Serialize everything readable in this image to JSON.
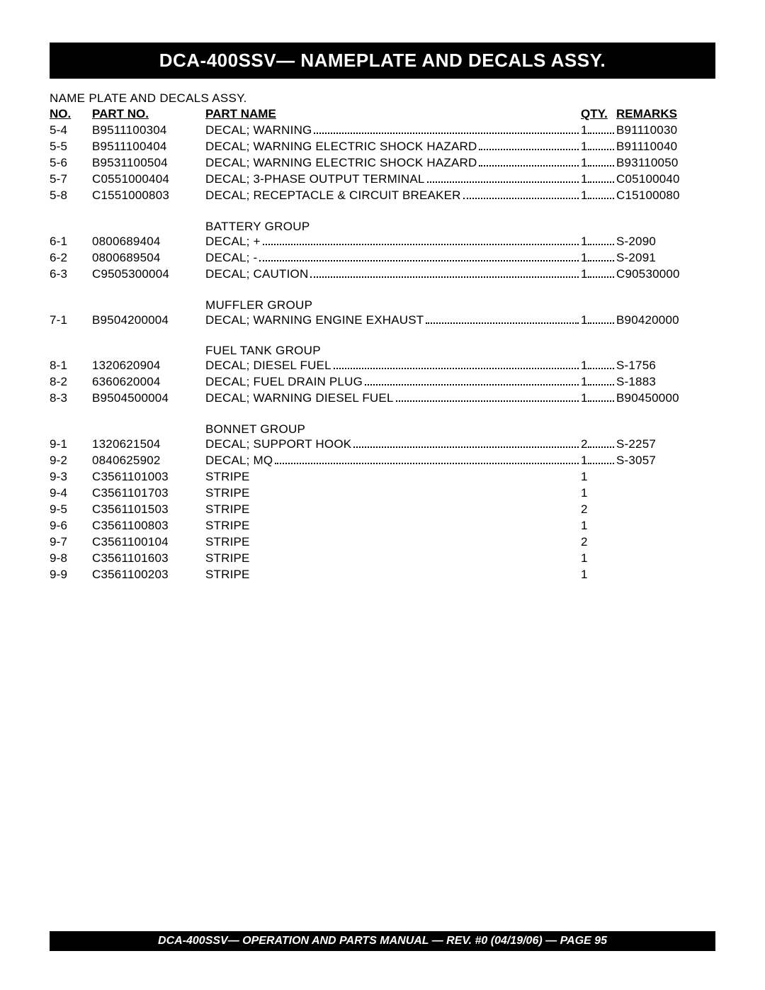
{
  "title": "DCA-400SSV— NAMEPLATE AND DECALS ASSY.",
  "subtitle": "NAME PLATE AND DECALS ASSY.",
  "headers": {
    "no": "NO.",
    "partno": "PART NO.",
    "partname": "PART NAME",
    "qty": "QTY.",
    "remarks": "REMARKS"
  },
  "sections": [
    {
      "group": null,
      "rows": [
        {
          "no": "5-4",
          "partno": "B9511100304",
          "name": "DECAL; WARNING",
          "qty": "1",
          "remark": "B91110030",
          "dotted": true
        },
        {
          "no": "5-5",
          "partno": "B9511100404",
          "name": "DECAL; WARNING ELECTRIC SHOCK HAZARD",
          "qty": "1",
          "remark": "B91110040",
          "dotted": true
        },
        {
          "no": "5-6",
          "partno": "B9531100504",
          "name": "DECAL; WARNING ELECTRIC SHOCK HAZARD",
          "qty": "1",
          "remark": "B93110050",
          "dotted": true
        },
        {
          "no": "5-7",
          "partno": "C0551000404",
          "name": "DECAL; 3-PHASE OUTPUT TERMINAL",
          "qty": "1",
          "remark": "C05100040",
          "dotted": true
        },
        {
          "no": "5-8",
          "partno": "C1551000803",
          "name": "DECAL; RECEPTACLE & CIRCUIT BREAKER",
          "qty": "1",
          "remark": "C15100080",
          "dotted": true
        }
      ]
    },
    {
      "group": "BATTERY GROUP",
      "rows": [
        {
          "no": "6-1",
          "partno": "0800689404",
          "name": "DECAL; +",
          "qty": "1",
          "remark": "S-2090",
          "dotted": true
        },
        {
          "no": "6-2",
          "partno": "0800689504",
          "name": "DECAL; -",
          "qty": "1",
          "remark": "S-2091",
          "dotted": true
        },
        {
          "no": "6-3",
          "partno": "C9505300004",
          "name": "DECAL; CAUTION",
          "qty": "1",
          "remark": "C90530000",
          "dotted": true
        }
      ]
    },
    {
      "group": "MUFFLER GROUP",
      "rows": [
        {
          "no": "7-1",
          "partno": "B9504200004",
          "name": "DECAL; WARNING ENGINE EXHAUST",
          "qty": "1",
          "remark": "B90420000",
          "dotted": true
        }
      ]
    },
    {
      "group": "FUEL TANK GROUP",
      "rows": [
        {
          "no": "8-1",
          "partno": "1320620904",
          "name": "DECAL; DIESEL FUEL",
          "qty": "1",
          "remark": "S-1756",
          "dotted": true
        },
        {
          "no": "8-2",
          "partno": "6360620004",
          "name": "DECAL; FUEL DRAIN PLUG",
          "qty": "1",
          "remark": "S-1883",
          "dotted": true
        },
        {
          "no": "8-3",
          "partno": "B9504500004",
          "name": "DECAL; WARNING DIESEL FUEL",
          "qty": "1",
          "remark": "B90450000",
          "dotted": true
        }
      ]
    },
    {
      "group": "BONNET GROUP",
      "rows": [
        {
          "no": "9-1",
          "partno": "1320621504",
          "name": "DECAL; SUPPORT HOOK",
          "qty": "2",
          "remark": "S-2257",
          "dotted": true
        },
        {
          "no": "9-2",
          "partno": "0840625902",
          "name": "DECAL; MQ",
          "qty": "1",
          "remark": "S-3057",
          "dotted": true
        },
        {
          "no": "9-3",
          "partno": "C3561101003",
          "name": "STRIPE",
          "qty": "1",
          "remark": "",
          "dotted": false
        },
        {
          "no": "9-4",
          "partno": "C3561101703",
          "name": "STRIPE",
          "qty": "1",
          "remark": "",
          "dotted": false
        },
        {
          "no": "9-5",
          "partno": "C3561101503",
          "name": "STRIPE",
          "qty": "2",
          "remark": "",
          "dotted": false
        },
        {
          "no": "9-6",
          "partno": "C3561100803",
          "name": "STRIPE",
          "qty": "1",
          "remark": "",
          "dotted": false
        },
        {
          "no": "9-7",
          "partno": "C3561100104",
          "name": "STRIPE",
          "qty": "2",
          "remark": "",
          "dotted": false
        },
        {
          "no": "9-8",
          "partno": "C3561101603",
          "name": "STRIPE",
          "qty": "1",
          "remark": "",
          "dotted": false
        },
        {
          "no": "9-9",
          "partno": "C3561100203",
          "name": "STRIPE",
          "qty": "1",
          "remark": "",
          "dotted": false
        }
      ]
    }
  ],
  "footer": "DCA-400SSV— OPERATION AND PARTS MANUAL — REV. #0  (04/19/06) — PAGE 95"
}
